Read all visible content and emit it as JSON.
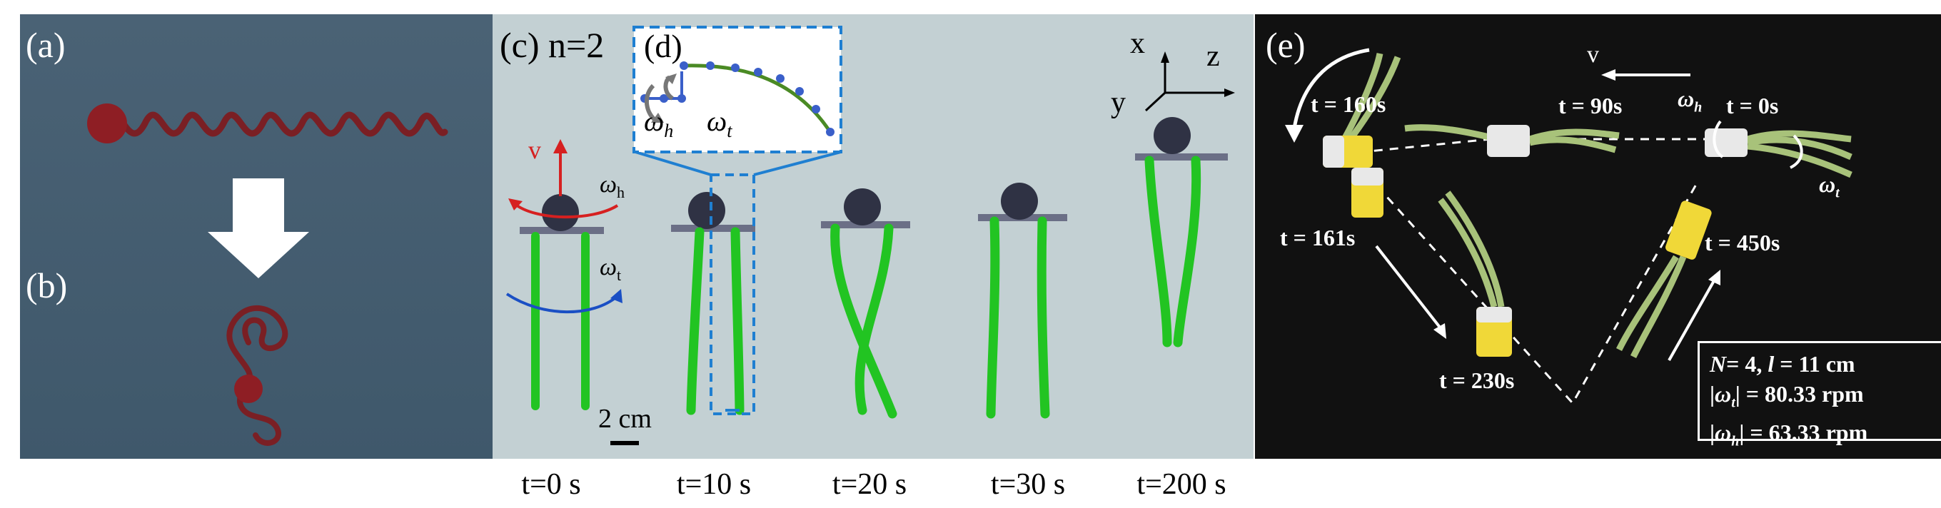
{
  "panels": {
    "a": {
      "label": "(a)"
    },
    "b": {
      "label": "(b)"
    },
    "c": {
      "label": "(c) n=2",
      "velocity_symbol": "v",
      "omega_h": "ω",
      "omega_h_sub": "h",
      "omega_t": "ω",
      "omega_t_sub": "t",
      "scale_bar": "2 cm"
    },
    "d": {
      "label": "(d)",
      "omega_h": "ω",
      "omega_h_sub": "h",
      "omega_t": "ω",
      "omega_t_sub": "t"
    },
    "axes": {
      "x": "x",
      "y": "y",
      "z": "z"
    },
    "e": {
      "label": "(e)",
      "velocity_symbol": "v",
      "omega_h": "ω",
      "omega_h_sub": "h",
      "omega_t": "ω",
      "omega_t_sub": "t",
      "times": [
        "t = 0s",
        "t = 90s",
        "t = 160s",
        "t = 161s",
        "t = 230s",
        "t = 450s"
      ],
      "params": {
        "line1_N": "N",
        "line1_rest": "= 4, ",
        "line1_l": "l",
        "line1_l_rest": " = 11 cm",
        "line2": "= 80.33 rpm",
        "line3": "= 63.33 rpm"
      }
    }
  },
  "frame_times": [
    "t=0 s",
    "t=10 s",
    "t=20 s",
    "t=30 s",
    "t=200 s"
  ],
  "colors": {
    "flagella": "#22c422",
    "head": "#2f3244",
    "velocity": "#d62020",
    "omega_t": "#1a4fc4",
    "inset_border": "#1f7fd1"
  }
}
